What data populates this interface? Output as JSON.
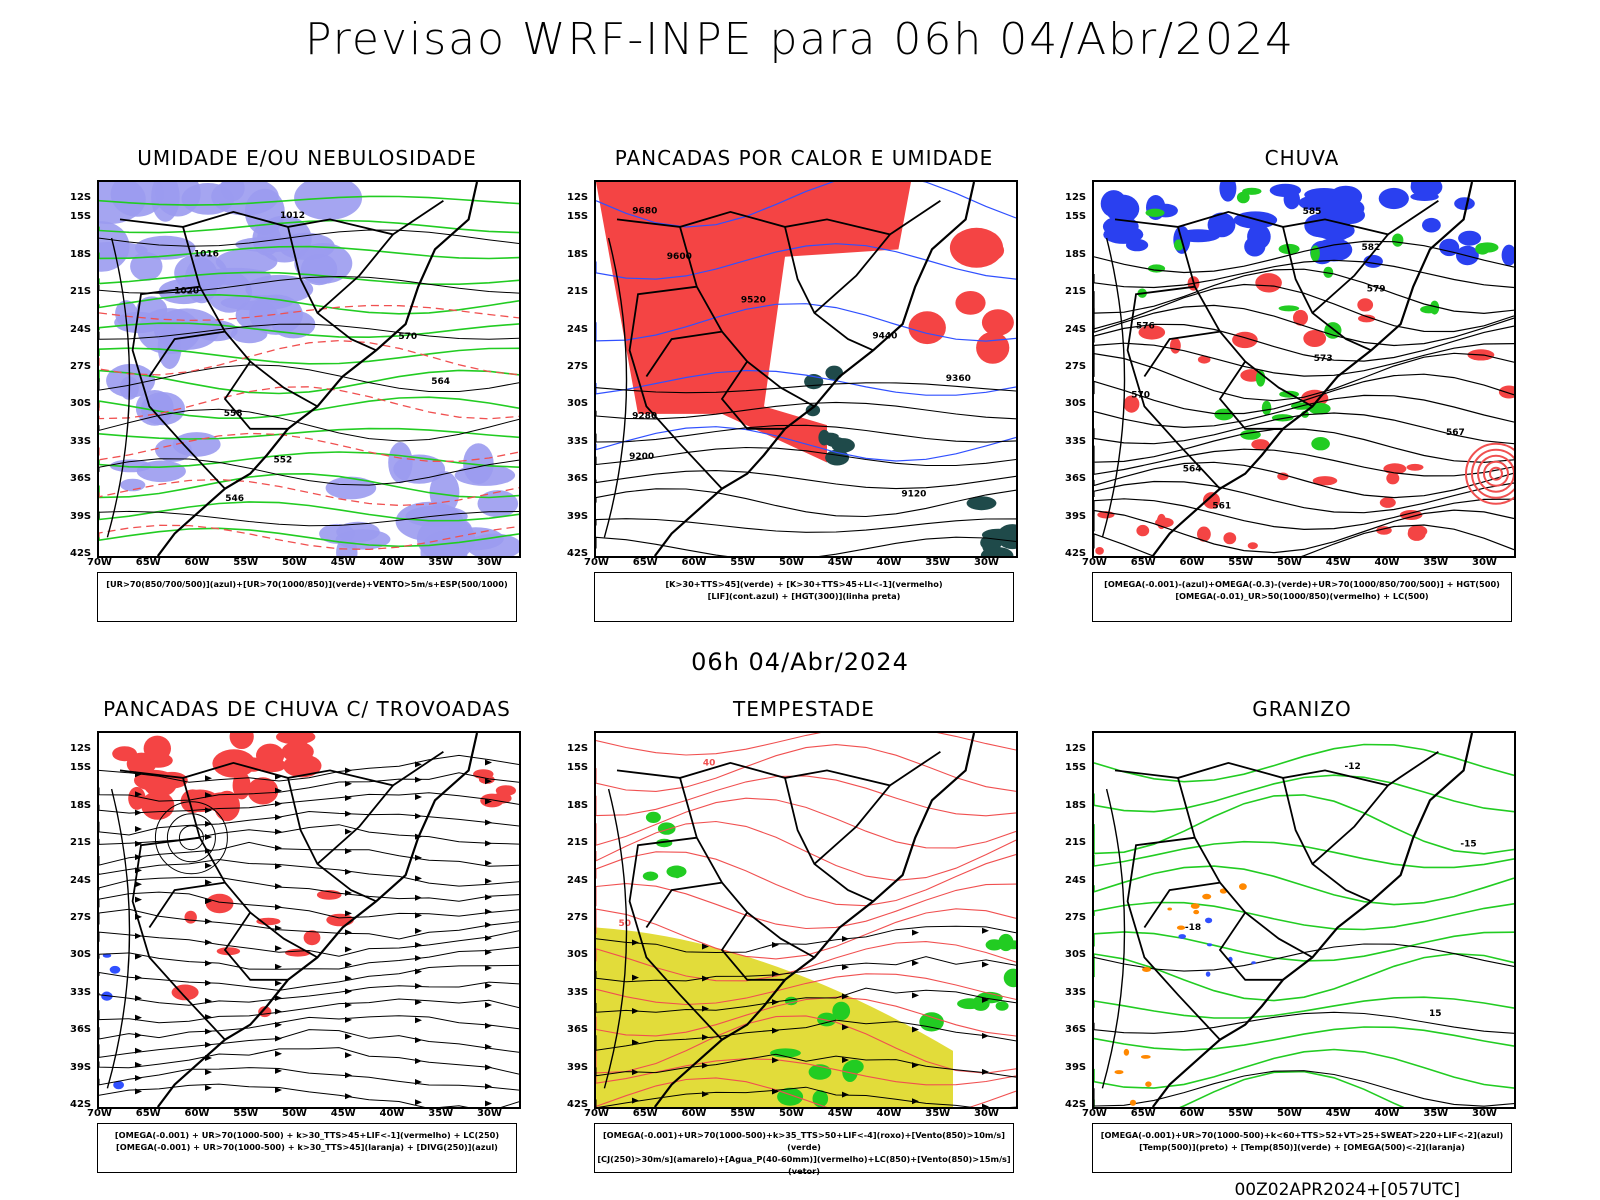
{
  "title": "Previsao WRF-INPE  para 06h 04/Abr/2024",
  "row2_title": "06h 04/Abr/2024",
  "footer": "00Z02APR2024+[057UTC]",
  "axes": {
    "lat_labels": [
      "12S",
      "15S",
      "18S",
      "21S",
      "24S",
      "27S",
      "30S",
      "33S",
      "36S",
      "39S",
      "42S"
    ],
    "lon_labels": [
      "70W",
      "65W",
      "60W",
      "55W",
      "50W",
      "45W",
      "40W",
      "35W",
      "30W"
    ]
  },
  "panels": [
    {
      "title": "UMIDADE E/OU NEBULOSIDADE",
      "legend": [
        "[UR>70(850/700/500)](azul)+[UR>70(1000/850)](verde)+VENTO>5m/s+ESP(500/1000)"
      ],
      "contour_labels": [
        "1012",
        "1016",
        "1020",
        "570",
        "564",
        "558",
        "552",
        "546"
      ]
    },
    {
      "title": "PANCADAS POR CALOR E UMIDADE",
      "legend": [
        "[K>30+TTS>45](verde) + [K>30+TTS>45+LI<-1](vermelho)",
        "[LIF](cont.azul) + [HGT(300)](linha preta)"
      ],
      "contour_labels": [
        "9680",
        "9600",
        "9520",
        "9440",
        "9360",
        "9280",
        "9200",
        "9120"
      ]
    },
    {
      "title": "CHUVA",
      "legend": [
        "[OMEGA(-0.001)-(azul)+OMEGA(-0.3)-(verde)+UR>70(1000/850/700/500)] + HGT(500)",
        "[OMEGA(-0.01)_UR>50(1000/850)(vermelho) + LC(500)"
      ],
      "contour_labels": [
        "585",
        "582",
        "579",
        "576",
        "573",
        "570",
        "567",
        "564",
        "561"
      ]
    },
    {
      "title": "PANCADAS DE CHUVA C/ TROVOADAS",
      "legend": [
        "[OMEGA(-0.001) + UR>70(1000-500) + k>30_TTS>45+LIF<-1](vermelho) + LC(250)",
        "[OMEGA(-0.001) + UR>70(1000-500) + k>30_TTS>45](laranja) + [DIVG(250)](azul)"
      ],
      "contour_labels": []
    },
    {
      "title": "TEMPESTADE",
      "legend": [
        "[OMEGA(-0.001)+UR>70(1000-500)+k>35_TTS>50+LIF<-4](roxo)+[Vento(850)>10m/s](verde)",
        "[CJ(250)>30m/s](amarelo)+[Agua_P(40-60mm)](vermelho)+LC(850)+[Vento(850)>15m/s](vetor)"
      ],
      "contour_labels": [
        "40",
        "50"
      ]
    },
    {
      "title": "GRANIZO",
      "legend": [
        "[OMEGA(-0.001)+UR>70(1000-500)+k<60+TTS>52+VT>25+SWEAT>220+LIF<-2](azul)",
        "[Temp(500)](preto) + [Temp(850)](verde) + [OMEGA(500)<-2](laranja)"
      ],
      "contour_labels": [
        "-12",
        "-15",
        "-18",
        "15"
      ]
    }
  ],
  "colors": {
    "map_border": "#000000",
    "humidity_blue": "#9b9bf0",
    "humidity_green": "#22cc22",
    "red_fill": "#f44444",
    "dark_teal": "#1f4a4a",
    "yellow_jet": "#e2dc3a",
    "contour_red": "#f05050",
    "contour_blue": "#3050ff",
    "orange": "#ff8800"
  }
}
